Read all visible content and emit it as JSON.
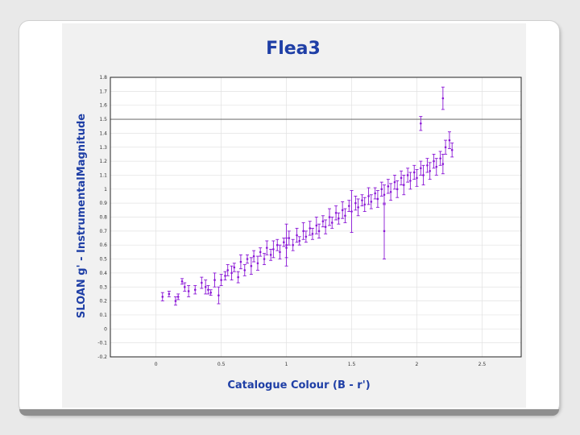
{
  "chart_data": {
    "type": "scatter",
    "title": "Flea3",
    "xlabel": "Catalogue Colour (B - r')",
    "ylabel": "SLOAN g' - InstrumentalMagnitude",
    "xlim": [
      -0.35,
      2.8
    ],
    "ylim": [
      -0.2,
      1.8
    ],
    "x_ticks": [
      0,
      0.5,
      1,
      1.5,
      2,
      2.5
    ],
    "y_ticks": [
      -0.2,
      -0.1,
      0,
      0.1,
      0.2,
      0.3,
      0.4,
      0.5,
      0.6,
      0.7,
      0.8,
      0.9,
      1,
      1.1,
      1.2,
      1.3,
      1.4,
      1.5,
      1.6,
      1.7,
      1.8
    ],
    "grid": true,
    "reference_line": 1.5,
    "marker_color": "#8a16d6",
    "points": [
      [
        0.05,
        0.23,
        0.03
      ],
      [
        0.1,
        0.25,
        0.02
      ],
      [
        0.15,
        0.2,
        0.03
      ],
      [
        0.17,
        0.23,
        0.02
      ],
      [
        0.2,
        0.34,
        0.02
      ],
      [
        0.22,
        0.3,
        0.03
      ],
      [
        0.25,
        0.27,
        0.04
      ],
      [
        0.3,
        0.28,
        0.03
      ],
      [
        0.35,
        0.33,
        0.04
      ],
      [
        0.38,
        0.3,
        0.05
      ],
      [
        0.4,
        0.28,
        0.03
      ],
      [
        0.42,
        0.26,
        0.02
      ],
      [
        0.45,
        0.35,
        0.05
      ],
      [
        0.48,
        0.24,
        0.06
      ],
      [
        0.5,
        0.35,
        0.04
      ],
      [
        0.53,
        0.38,
        0.03
      ],
      [
        0.55,
        0.42,
        0.04
      ],
      [
        0.58,
        0.4,
        0.05
      ],
      [
        0.6,
        0.44,
        0.03
      ],
      [
        0.63,
        0.37,
        0.04
      ],
      [
        0.65,
        0.48,
        0.05
      ],
      [
        0.68,
        0.42,
        0.04
      ],
      [
        0.7,
        0.5,
        0.03
      ],
      [
        0.73,
        0.45,
        0.06
      ],
      [
        0.75,
        0.52,
        0.04
      ],
      [
        0.78,
        0.47,
        0.05
      ],
      [
        0.8,
        0.55,
        0.03
      ],
      [
        0.83,
        0.5,
        0.04
      ],
      [
        0.85,
        0.58,
        0.05
      ],
      [
        0.88,
        0.53,
        0.04
      ],
      [
        0.9,
        0.57,
        0.06
      ],
      [
        0.93,
        0.6,
        0.04
      ],
      [
        0.95,
        0.55,
        0.05
      ],
      [
        0.98,
        0.62,
        0.03
      ],
      [
        1.0,
        0.58,
        0.07
      ],
      [
        1.02,
        0.65,
        0.05
      ],
      [
        1.05,
        0.6,
        0.04
      ],
      [
        1.08,
        0.67,
        0.05
      ],
      [
        1.1,
        0.63,
        0.03
      ],
      [
        1.13,
        0.7,
        0.06
      ],
      [
        1.15,
        0.66,
        0.04
      ],
      [
        1.18,
        0.72,
        0.05
      ],
      [
        1.2,
        0.68,
        0.04
      ],
      [
        1.23,
        0.74,
        0.06
      ],
      [
        1.25,
        0.7,
        0.05
      ],
      [
        1.28,
        0.77,
        0.04
      ],
      [
        1.3,
        0.73,
        0.05
      ],
      [
        1.33,
        0.8,
        0.06
      ],
      [
        1.35,
        0.76,
        0.04
      ],
      [
        1.38,
        0.83,
        0.05
      ],
      [
        1.4,
        0.79,
        0.04
      ],
      [
        1.43,
        0.85,
        0.06
      ],
      [
        1.45,
        0.81,
        0.05
      ],
      [
        1.48,
        0.88,
        0.04
      ],
      [
        1.5,
        0.84,
        0.15
      ],
      [
        1.53,
        0.9,
        0.05
      ],
      [
        1.55,
        0.87,
        0.06
      ],
      [
        1.58,
        0.92,
        0.04
      ],
      [
        1.6,
        0.89,
        0.05
      ],
      [
        1.63,
        0.95,
        0.06
      ],
      [
        1.65,
        0.91,
        0.05
      ],
      [
        1.68,
        0.97,
        0.04
      ],
      [
        1.7,
        0.93,
        0.06
      ],
      [
        1.73,
        1.0,
        0.05
      ],
      [
        1.75,
        0.96,
        0.07
      ],
      [
        1.78,
        1.02,
        0.05
      ],
      [
        1.8,
        0.98,
        0.06
      ],
      [
        1.83,
        1.05,
        0.05
      ],
      [
        1.85,
        1.0,
        0.06
      ],
      [
        1.88,
        1.08,
        0.05
      ],
      [
        1.9,
        1.03,
        0.07
      ],
      [
        1.93,
        1.1,
        0.05
      ],
      [
        1.95,
        1.06,
        0.06
      ],
      [
        1.98,
        1.12,
        0.05
      ],
      [
        2.0,
        1.08,
        0.06
      ],
      [
        2.03,
        1.15,
        0.05
      ],
      [
        2.05,
        1.1,
        0.07
      ],
      [
        2.08,
        1.17,
        0.05
      ],
      [
        2.1,
        1.13,
        0.06
      ],
      [
        2.13,
        1.2,
        0.05
      ],
      [
        2.15,
        1.16,
        0.06
      ],
      [
        2.18,
        1.22,
        0.05
      ],
      [
        2.2,
        1.18,
        0.07
      ],
      [
        2.22,
        1.3,
        0.05
      ],
      [
        2.25,
        1.35,
        0.06
      ],
      [
        2.27,
        1.28,
        0.05
      ],
      [
        2.2,
        1.65,
        0.08
      ],
      [
        2.03,
        1.47,
        0.05
      ],
      [
        1.75,
        0.7,
        0.2
      ],
      [
        1.0,
        0.6,
        0.15
      ]
    ]
  }
}
